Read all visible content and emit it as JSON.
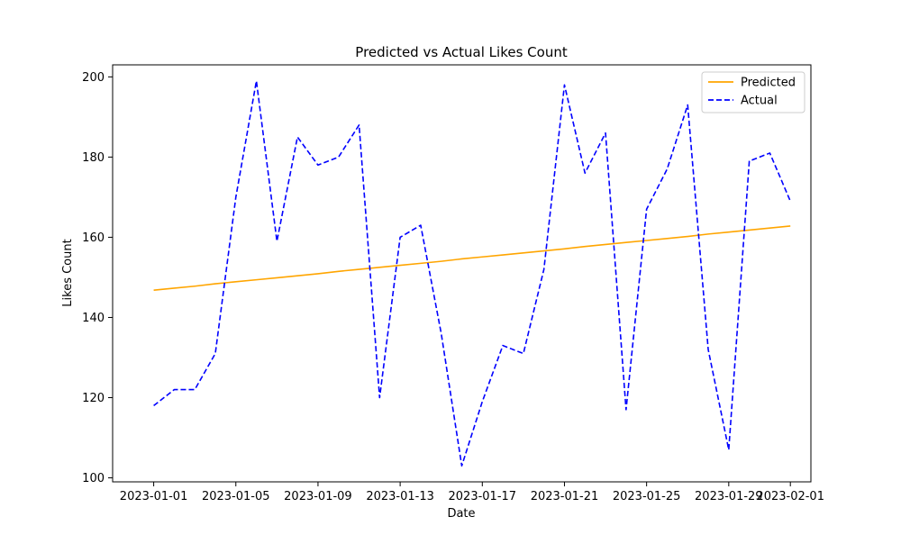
{
  "chart_data": {
    "type": "line",
    "title": "Predicted vs Actual Likes Count",
    "xlabel": "Date",
    "ylabel": "Likes Count",
    "ylim": [
      99,
      203
    ],
    "xlim": [
      "2022-12-30",
      "2023-02-02"
    ],
    "grid": false,
    "legend_position": "top-right",
    "x": [
      "2023-01-01",
      "2023-01-02",
      "2023-01-03",
      "2023-01-04",
      "2023-01-05",
      "2023-01-06",
      "2023-01-07",
      "2023-01-08",
      "2023-01-09",
      "2023-01-10",
      "2023-01-11",
      "2023-01-12",
      "2023-01-13",
      "2023-01-14",
      "2023-01-15",
      "2023-01-16",
      "2023-01-17",
      "2023-01-18",
      "2023-01-19",
      "2023-01-20",
      "2023-01-21",
      "2023-01-22",
      "2023-01-23",
      "2023-01-24",
      "2023-01-25",
      "2023-01-26",
      "2023-01-27",
      "2023-01-28",
      "2023-01-29",
      "2023-01-30",
      "2023-01-31",
      "2023-02-01"
    ],
    "x_ticks": [
      "2023-01-01",
      "2023-01-05",
      "2023-01-09",
      "2023-01-13",
      "2023-01-17",
      "2023-01-21",
      "2023-01-25",
      "2023-01-29",
      "2023-02-01"
    ],
    "y_ticks": [
      100,
      120,
      140,
      160,
      180,
      200
    ],
    "series": [
      {
        "name": "Predicted",
        "color": "#ffa500",
        "style": "solid",
        "values": [
          146.8,
          147.3,
          147.8,
          148.4,
          148.9,
          149.4,
          149.9,
          150.4,
          150.9,
          151.5,
          152.0,
          152.5,
          153.0,
          153.5,
          154.0,
          154.6,
          155.1,
          155.6,
          156.1,
          156.6,
          157.1,
          157.7,
          158.2,
          158.7,
          159.2,
          159.7,
          160.2,
          160.8,
          161.3,
          161.8,
          162.3,
          162.8
        ]
      },
      {
        "name": "Actual",
        "color": "#0000ff",
        "style": "dashed",
        "values": [
          118,
          122,
          122,
          131,
          170,
          199,
          159,
          185,
          178,
          180,
          188,
          120,
          160,
          163,
          136,
          103,
          119,
          133,
          131,
          152,
          198,
          176,
          186,
          117,
          167,
          177,
          193,
          132,
          107,
          179,
          181,
          169
        ]
      }
    ]
  }
}
